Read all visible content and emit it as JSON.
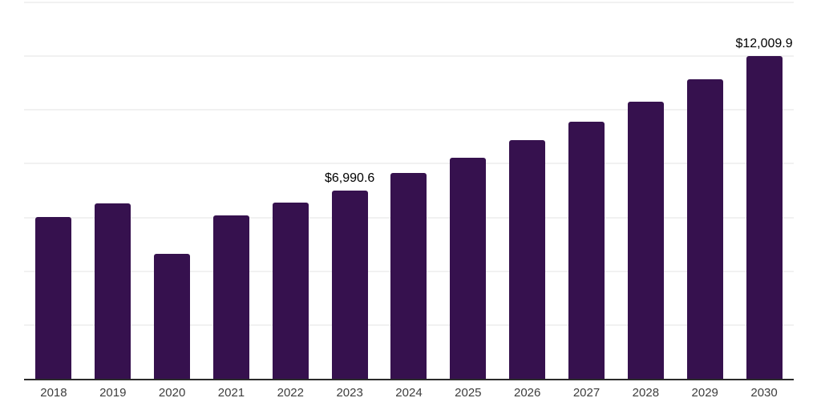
{
  "chart_data": {
    "type": "bar",
    "title": "",
    "xlabel": "",
    "ylabel": "",
    "categories": [
      "2018",
      "2019",
      "2020",
      "2021",
      "2022",
      "2023",
      "2024",
      "2025",
      "2026",
      "2027",
      "2028",
      "2029",
      "2030"
    ],
    "values": [
      6010,
      6520,
      4640,
      6070,
      6550,
      6990.6,
      7650,
      8210,
      8870,
      9550,
      10320,
      11130,
      12009.9
    ],
    "annotations": [
      {
        "category": "2023",
        "text": "$6,990.6"
      },
      {
        "category": "2030",
        "text": "$12,009.9"
      }
    ],
    "ylim": [
      0,
      14000
    ],
    "grid_step": 2000,
    "grid_on": true,
    "legend": "none"
  },
  "colors": {
    "bar": "#36114E",
    "axis_line": "#2b2b2b",
    "gridline": "#f1f1f1",
    "data_label": "#000000",
    "tick_label": "#3d3d3d",
    "background": "#ffffff"
  }
}
